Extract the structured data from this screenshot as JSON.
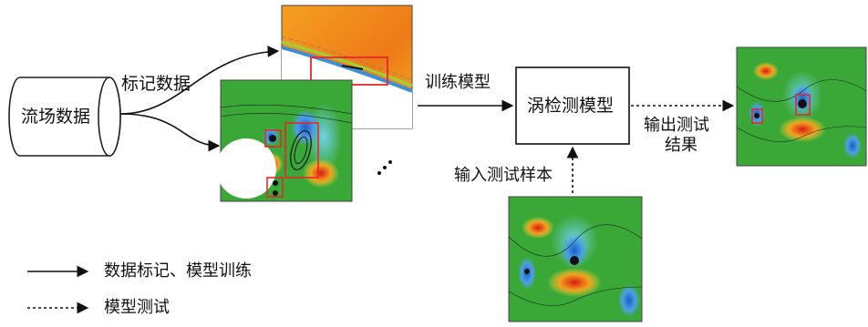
{
  "nodes": {
    "data_source": "流场数据",
    "model": "涡检测模型"
  },
  "edges": {
    "labeling": "标记数据",
    "training": "训练模型",
    "test_input": "输入测试样本",
    "output_line1": "输出测试",
    "output_line2": "结果"
  },
  "legend": {
    "solid": "数据标记、模型训练",
    "dashed": "模型测试"
  },
  "ellipsis": "…",
  "colors": {
    "field_green": "#3aa836",
    "vortex_blue": "#2d7fd8",
    "vortex_red": "#e23a1c",
    "highlight_box": "#e5282d",
    "orange_field": "#f08a1c"
  }
}
